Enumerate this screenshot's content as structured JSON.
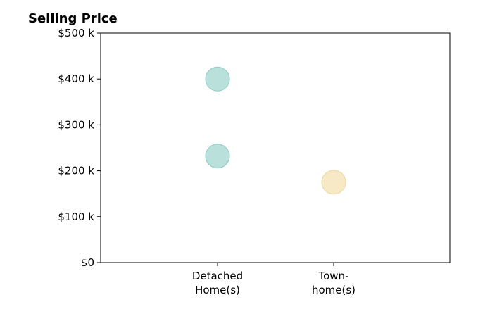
{
  "chart_data": {
    "type": "scatter",
    "title": "Selling Price",
    "xlabel": "",
    "ylabel": "",
    "categories": [
      [
        "Detached",
        "Home(s)"
      ],
      [
        "Town-",
        "home(s)"
      ]
    ],
    "ylim": [
      0,
      500000
    ],
    "yticks": [
      {
        "value": 0,
        "label": "$0"
      },
      {
        "value": 100000,
        "label": "$100 k"
      },
      {
        "value": 200000,
        "label": "$200 k"
      },
      {
        "value": 300000,
        "label": "$300 k"
      },
      {
        "value": 400000,
        "label": "$400 k"
      },
      {
        "value": 500000,
        "label": "$500 k"
      }
    ],
    "points": [
      {
        "category_index": 0,
        "y": 400000,
        "color": "#a8d8d2"
      },
      {
        "category_index": 0,
        "y": 232000,
        "color": "#a8d8d2"
      },
      {
        "category_index": 1,
        "y": 175000,
        "color": "#f6e3b8"
      }
    ],
    "grid": false,
    "legend": "none"
  }
}
